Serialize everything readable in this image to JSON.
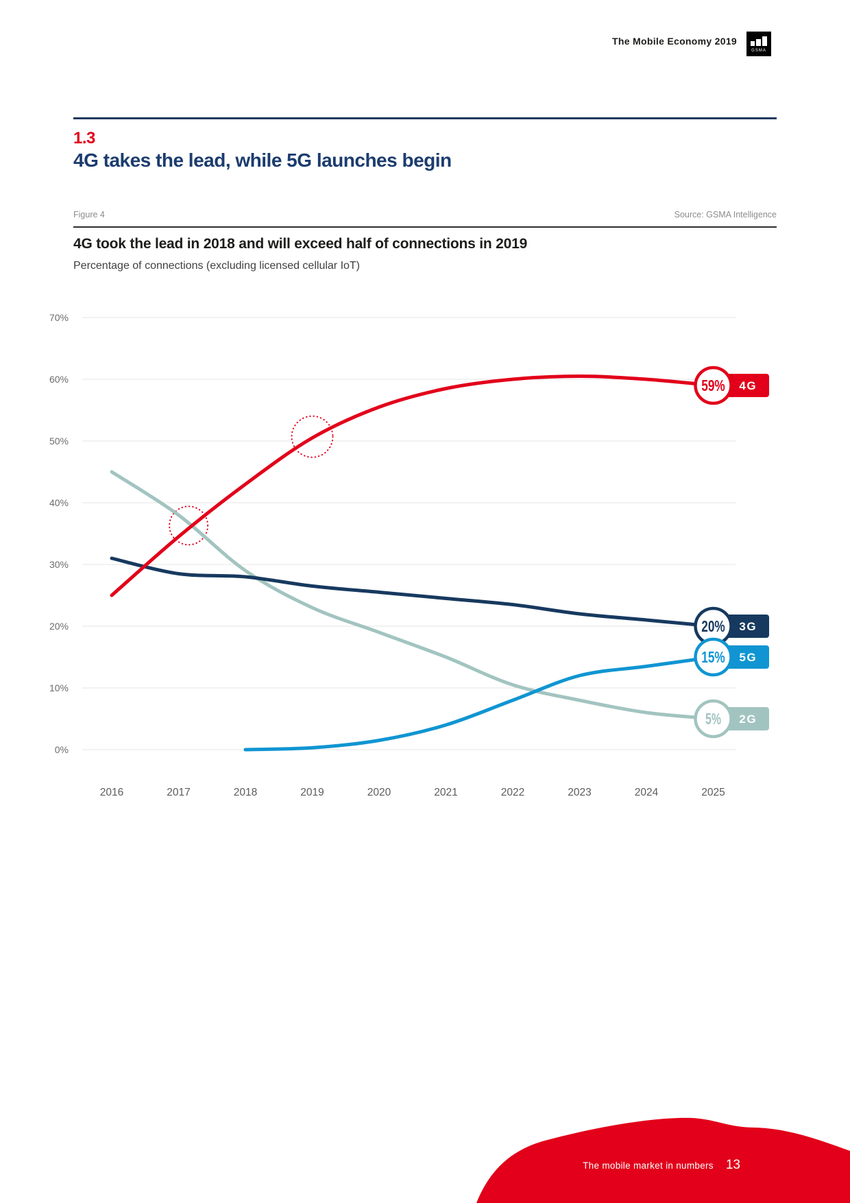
{
  "page": {
    "header": {
      "title": "The Mobile Economy 2019",
      "logo_text": "GSMA"
    },
    "section": {
      "number": "1.3",
      "heading": "4G takes the lead, while 5G launches begin"
    },
    "figure": {
      "label": "Figure 4",
      "source": "Source: GSMA Intelligence"
    },
    "footer": {
      "label": "The mobile market in numbers",
      "page_number": "13"
    }
  },
  "chart_data": {
    "type": "line",
    "title": "4G took the lead in 2018 and will exceed half of connections in 2019",
    "subtitle": "Percentage of connections (excluding licensed cellular IoT)",
    "x": [
      2016,
      2017,
      2018,
      2019,
      2020,
      2021,
      2022,
      2023,
      2024,
      2025
    ],
    "xlabel": "",
    "ylabel": "",
    "ylim": [
      0,
      70
    ],
    "grid": "horizontal",
    "legend_position": "right-end-labels",
    "yticks": [
      {
        "v": 0,
        "label": "0%"
      },
      {
        "v": 10,
        "label": "10%"
      },
      {
        "v": 20,
        "label": "20%"
      },
      {
        "v": 30,
        "label": "30%"
      },
      {
        "v": 40,
        "label": "40%"
      },
      {
        "v": 50,
        "label": "50%"
      },
      {
        "v": 60,
        "label": "60%"
      },
      {
        "v": 70,
        "label": "70%"
      }
    ],
    "series": [
      {
        "name": "4G",
        "color": "#e2001a",
        "end_label": "59%",
        "values": [
          25,
          34.5,
          43,
          50.5,
          55.5,
          58.5,
          60,
          60.5,
          60,
          59
        ]
      },
      {
        "name": "3G",
        "color": "#17395f",
        "end_label": "20%",
        "values": [
          31,
          28.5,
          28,
          26.5,
          25.5,
          24.5,
          23.5,
          22,
          21,
          20
        ]
      },
      {
        "name": "5G",
        "color": "#1095d2",
        "end_label": "15%",
        "values": [
          null,
          null,
          0,
          0.3,
          1.5,
          4,
          8,
          12,
          13.5,
          15
        ]
      },
      {
        "name": "2G",
        "color": "#a2c4c0",
        "end_label": "5%",
        "values": [
          45,
          38,
          29,
          23,
          19,
          15,
          10.5,
          8,
          6,
          5
        ]
      }
    ],
    "annotations": [
      {
        "type": "dotted-circle",
        "x": 2017.15,
        "y": 36.3,
        "r": 28
      },
      {
        "type": "dotted-circle",
        "x": 2019,
        "y": 50.7,
        "r": 30
      }
    ]
  }
}
